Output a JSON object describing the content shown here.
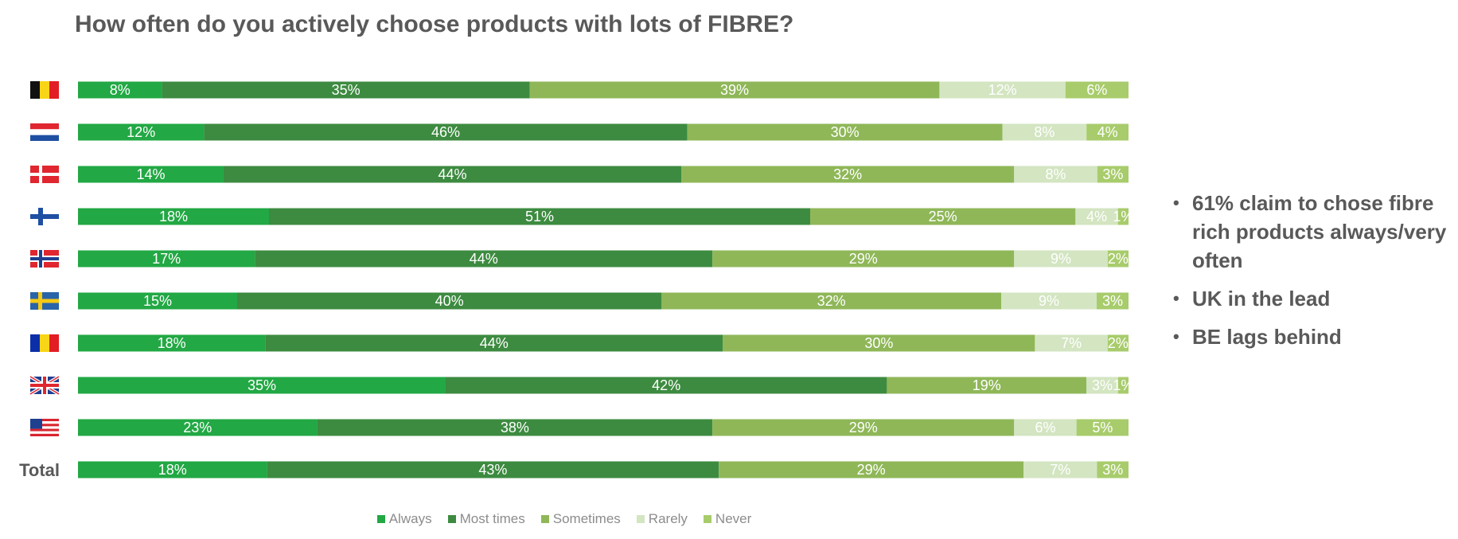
{
  "chart_data": {
    "type": "bar",
    "orientation": "horizontal",
    "stacked": true,
    "title": "How often do you actively choose products with lots of FIBRE?",
    "categories": [
      "BE",
      "NL",
      "DK",
      "FI",
      "NO",
      "SE",
      "RO",
      "UK",
      "US",
      "Total"
    ],
    "category_display": [
      {
        "flag": "belgium-flag"
      },
      {
        "flag": "netherlands-flag"
      },
      {
        "flag": "denmark-flag"
      },
      {
        "flag": "finland-flag"
      },
      {
        "flag": "norway-flag"
      },
      {
        "flag": "sweden-flag"
      },
      {
        "flag": "romania-flag"
      },
      {
        "flag": "uk-flag"
      },
      {
        "flag": "usa-flag"
      },
      {
        "text": "Total"
      }
    ],
    "series": [
      {
        "name": "Always",
        "color": "#22a844",
        "values": [
          8,
          12,
          14,
          18,
          17,
          15,
          18,
          35,
          23,
          18
        ]
      },
      {
        "name": "Most times",
        "color": "#3d8b40",
        "values": [
          35,
          46,
          44,
          51,
          44,
          40,
          44,
          42,
          38,
          43
        ]
      },
      {
        "name": "Sometimes",
        "color": "#8fb758",
        "values": [
          39,
          30,
          32,
          25,
          29,
          32,
          30,
          19,
          29,
          29
        ]
      },
      {
        "name": "Rarely",
        "color": "#d3e5c1",
        "values": [
          12,
          8,
          8,
          4,
          9,
          9,
          7,
          3,
          6,
          7
        ]
      },
      {
        "name": "Never",
        "color": "#a8cc6c",
        "values": [
          6,
          4,
          3,
          1,
          2,
          3,
          2,
          1,
          5,
          3
        ]
      }
    ],
    "value_suffix": "%",
    "xlim": [
      0,
      100
    ],
    "legend_position": "bottom",
    "grid": false
  },
  "bullets": [
    "61% claim to chose fibre rich products always/very often",
    "UK in the lead",
    "BE lags behind"
  ],
  "bullet_glyph": "•"
}
